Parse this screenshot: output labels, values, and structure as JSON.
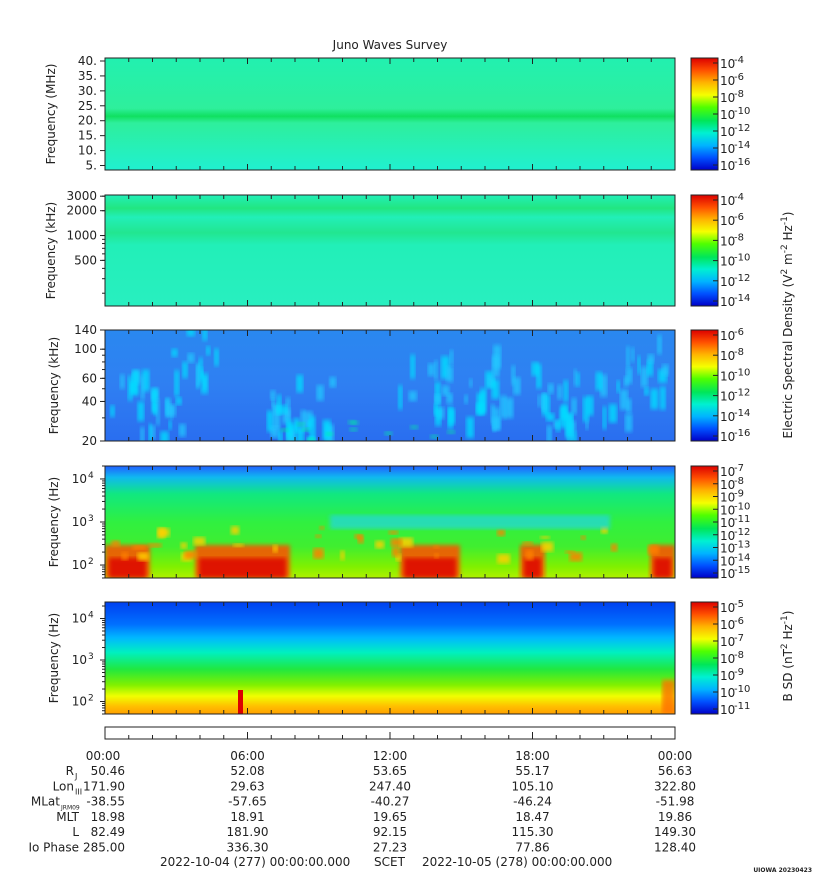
{
  "chart_data": {
    "type": "heatmap",
    "title": "Juno Waves Survey",
    "time_axis": {
      "ticks": [
        "00:00",
        "06:00",
        "12:00",
        "18:00",
        "00:00"
      ],
      "start": "2022-10-04 (277) 00:00:00.000",
      "scet_label": "SCET",
      "end": "2022-10-05 (278) 00:00:00.000"
    },
    "panels": [
      {
        "ylabel": "Frequency (MHz)",
        "yscale": "linear",
        "ylim": [
          3.5,
          41
        ],
        "yticks": [
          {
            "v": 40,
            "t": "40."
          },
          {
            "v": 35,
            "t": "35."
          },
          {
            "v": 30,
            "t": "30."
          },
          {
            "v": 25,
            "t": "25."
          },
          {
            "v": 20,
            "t": "20."
          },
          {
            "v": 15,
            "t": "15."
          },
          {
            "v": 10,
            "t": "10."
          },
          {
            "v": 5,
            "t": "5."
          }
        ],
        "colorbar": {
          "exponents": [
            "-4",
            "-6",
            "-8",
            "-10",
            "-12",
            "-14",
            "-16"
          ]
        }
      },
      {
        "ylabel": "Frequency (kHz)",
        "yscale": "log",
        "ylim": [
          140,
          3100
        ],
        "yticks": [
          {
            "v": 3000,
            "t": "3000"
          },
          {
            "v": 2000,
            "t": "2000"
          },
          {
            "v": 1000,
            "t": "1000"
          },
          {
            "v": 500,
            "t": "500"
          }
        ],
        "colorbar": {
          "exponents": [
            "-4",
            "-6",
            "-8",
            "-10",
            "-12",
            "-14"
          ]
        }
      },
      {
        "ylabel": "Frequency (kHz)",
        "yscale": "log",
        "ylim": [
          20,
          140
        ],
        "yticks": [
          {
            "v": 140,
            "t": "140"
          },
          {
            "v": 100,
            "t": "100"
          },
          {
            "v": 60,
            "t": "60"
          },
          {
            "v": 40,
            "t": "40"
          },
          {
            "v": 20,
            "t": "20"
          }
        ],
        "colorbar": {
          "exponents": [
            "-6",
            "-8",
            "-10",
            "-12",
            "-14",
            "-16"
          ]
        }
      },
      {
        "ylabel": "Frequency (Hz)",
        "yscale": "log",
        "ylim": [
          50,
          20000
        ],
        "yticks": [
          {
            "v": 10000,
            "t": "10",
            "e": "4"
          },
          {
            "v": 1000,
            "t": "10",
            "e": "3"
          },
          {
            "v": 100,
            "t": "10",
            "e": "2"
          }
        ],
        "colorbar": {
          "exponents": [
            "-7",
            "-8",
            "-9",
            "-10",
            "-11",
            "-12",
            "-13",
            "-14",
            "-15"
          ]
        }
      },
      {
        "ylabel": "Frequency (Hz)",
        "yscale": "log",
        "ylim": [
          50,
          25000
        ],
        "yticks": [
          {
            "v": 10000,
            "t": "10",
            "e": "4"
          },
          {
            "v": 1000,
            "t": "10",
            "e": "3"
          },
          {
            "v": 100,
            "t": "10",
            "e": "2"
          }
        ],
        "colorbar": {
          "exponents": [
            "-5",
            "-6",
            "-7",
            "-8",
            "-9",
            "-10",
            "-11"
          ]
        }
      }
    ],
    "colorbar_labels": {
      "electric": {
        "prefix": "Electric Spectral Density (V",
        "s1": "2",
        "mid": " m",
        "s2": "-2",
        "mid2": " Hz",
        "s3": "-1",
        "suffix": ")"
      },
      "magnetic": {
        "prefix": "B SD (nT",
        "s1": "2",
        "mid": " Hz",
        "s2": "-1",
        "suffix": ")"
      }
    },
    "ephemeris": {
      "rows": [
        {
          "label": "R",
          "sub": "J",
          "values": [
            "50.46",
            "52.08",
            "53.65",
            "55.17",
            "56.63"
          ]
        },
        {
          "label": "Lon",
          "sub": "III",
          "values": [
            "171.90",
            "29.63",
            "247.40",
            "105.10",
            "322.80"
          ]
        },
        {
          "label": "MLat",
          "sub": "JRM09",
          "values": [
            "-38.55",
            "-57.65",
            "-40.27",
            "-46.24",
            "-51.98"
          ]
        },
        {
          "label": "MLT",
          "sub": "",
          "values": [
            "18.98",
            "18.91",
            "19.65",
            "18.47",
            "19.86"
          ]
        },
        {
          "label": "L",
          "sub": "",
          "values": [
            "82.49",
            "181.90",
            "92.15",
            "115.30",
            "149.30"
          ]
        },
        {
          "label": "Io Phase",
          "sub": "",
          "values": [
            "285.00",
            "336.30",
            "27.23",
            "77.86",
            "128.40"
          ]
        }
      ]
    },
    "watermark": "UIOWA 20230423",
    "colors": {
      "colormap": [
        "#0000c8",
        "#0050ff",
        "#00b4ff",
        "#00f0d2",
        "#00e65a",
        "#50ff00",
        "#f5ff00",
        "#ffb400",
        "#ff5000",
        "#dc0000"
      ]
    }
  }
}
